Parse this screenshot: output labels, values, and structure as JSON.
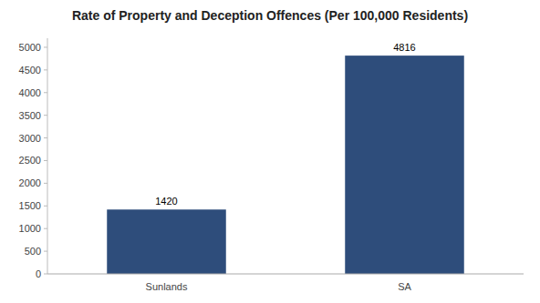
{
  "chart_data": {
    "type": "bar",
    "title": "Rate of Property and Deception Offences (Per 100,000 Residents)",
    "categories": [
      "Sunlands",
      "SA"
    ],
    "values": [
      1420,
      4816
    ],
    "color": "#2e4d7b",
    "ylim": [
      0,
      5200
    ],
    "yticks": [
      0,
      500,
      1000,
      1500,
      2000,
      2500,
      3000,
      3500,
      4000,
      4500,
      5000
    ],
    "grid": false,
    "data_labels": true
  }
}
